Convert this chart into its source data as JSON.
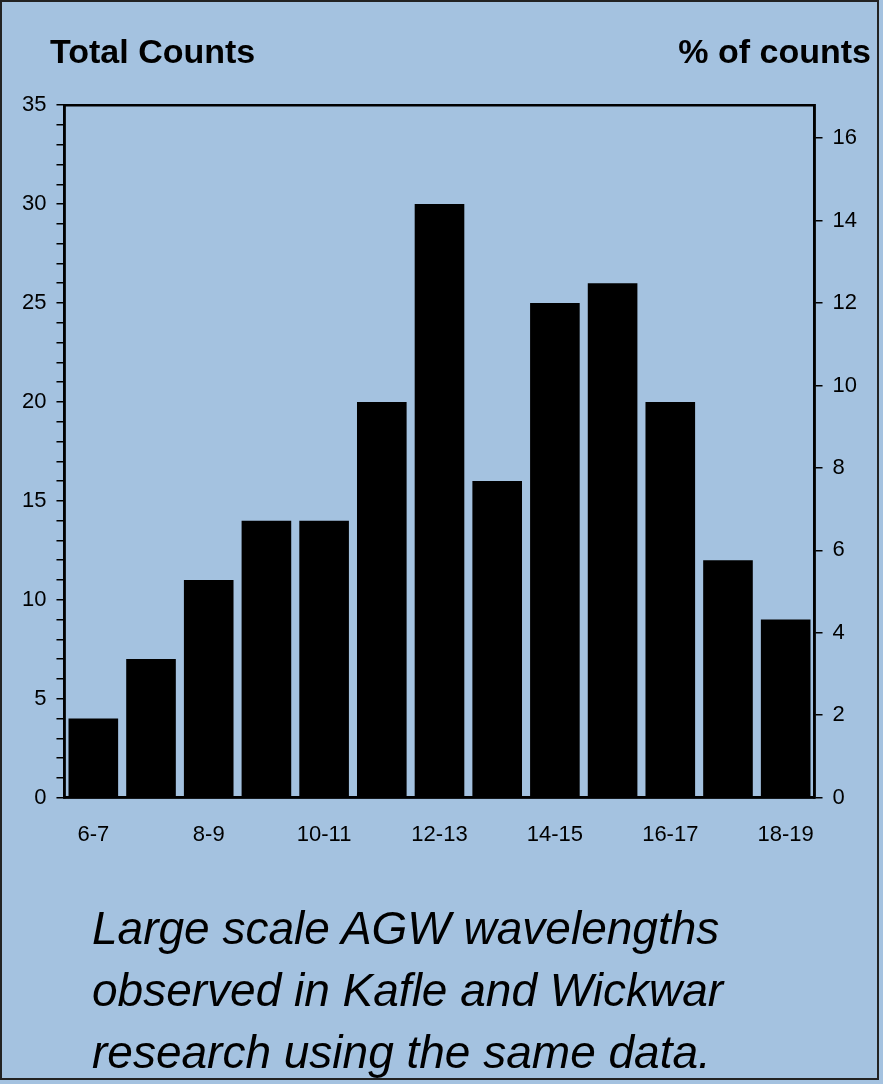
{
  "chart_data": {
    "type": "bar",
    "ylabel": "Total Counts",
    "y2label": "% of counts",
    "categories": [
      "6-7",
      null,
      "8-9",
      null,
      "10-11",
      null,
      "12-13",
      null,
      "14-15",
      null,
      "16-17",
      null,
      "18-19"
    ],
    "series": [
      {
        "color": "#000000",
        "values": [
          4,
          7,
          11,
          14,
          14,
          20,
          30,
          16,
          25,
          26,
          20,
          12,
          9
        ]
      }
    ],
    "ylim": [
      0,
      35
    ],
    "yticks": [
      0,
      {
        "value": 1,
        "label": null
      },
      {
        "value": 2,
        "label": null
      },
      {
        "value": 3,
        "label": null
      },
      {
        "value": 4,
        "label": null
      },
      5,
      {
        "value": 6,
        "label": null
      },
      {
        "value": 7,
        "label": null
      },
      {
        "value": 8,
        "label": null
      },
      {
        "value": 9,
        "label": null
      },
      10,
      {
        "value": 11,
        "label": null
      },
      {
        "value": 12,
        "label": null
      },
      {
        "value": 13,
        "label": null
      },
      {
        "value": 14,
        "label": null
      },
      15,
      {
        "value": 16,
        "label": null
      },
      {
        "value": 17,
        "label": null
      },
      {
        "value": 18,
        "label": null
      },
      {
        "value": 19,
        "label": null
      },
      20,
      {
        "value": 21,
        "label": null
      },
      {
        "value": 22,
        "label": null
      },
      {
        "value": 23,
        "label": null
      },
      {
        "value": 24,
        "label": null
      },
      25,
      {
        "value": 26,
        "label": null
      },
      {
        "value": 27,
        "label": null
      },
      {
        "value": 28,
        "label": null
      },
      {
        "value": 29,
        "label": null
      },
      30,
      {
        "value": 31,
        "label": null
      },
      {
        "value": 32,
        "label": null
      },
      {
        "value": 33,
        "label": null
      },
      {
        "value": 34,
        "label": null
      },
      35
    ],
    "y2lim": [
      0,
      16.8
    ],
    "y2ticks": [
      0,
      2,
      4,
      6,
      8,
      10,
      12,
      14,
      16
    ],
    "grid": false,
    "legend": false,
    "annotations": [
      "Large scale AGW wavelengths observed in Kafle and Wickwar research using the same data."
    ]
  }
}
